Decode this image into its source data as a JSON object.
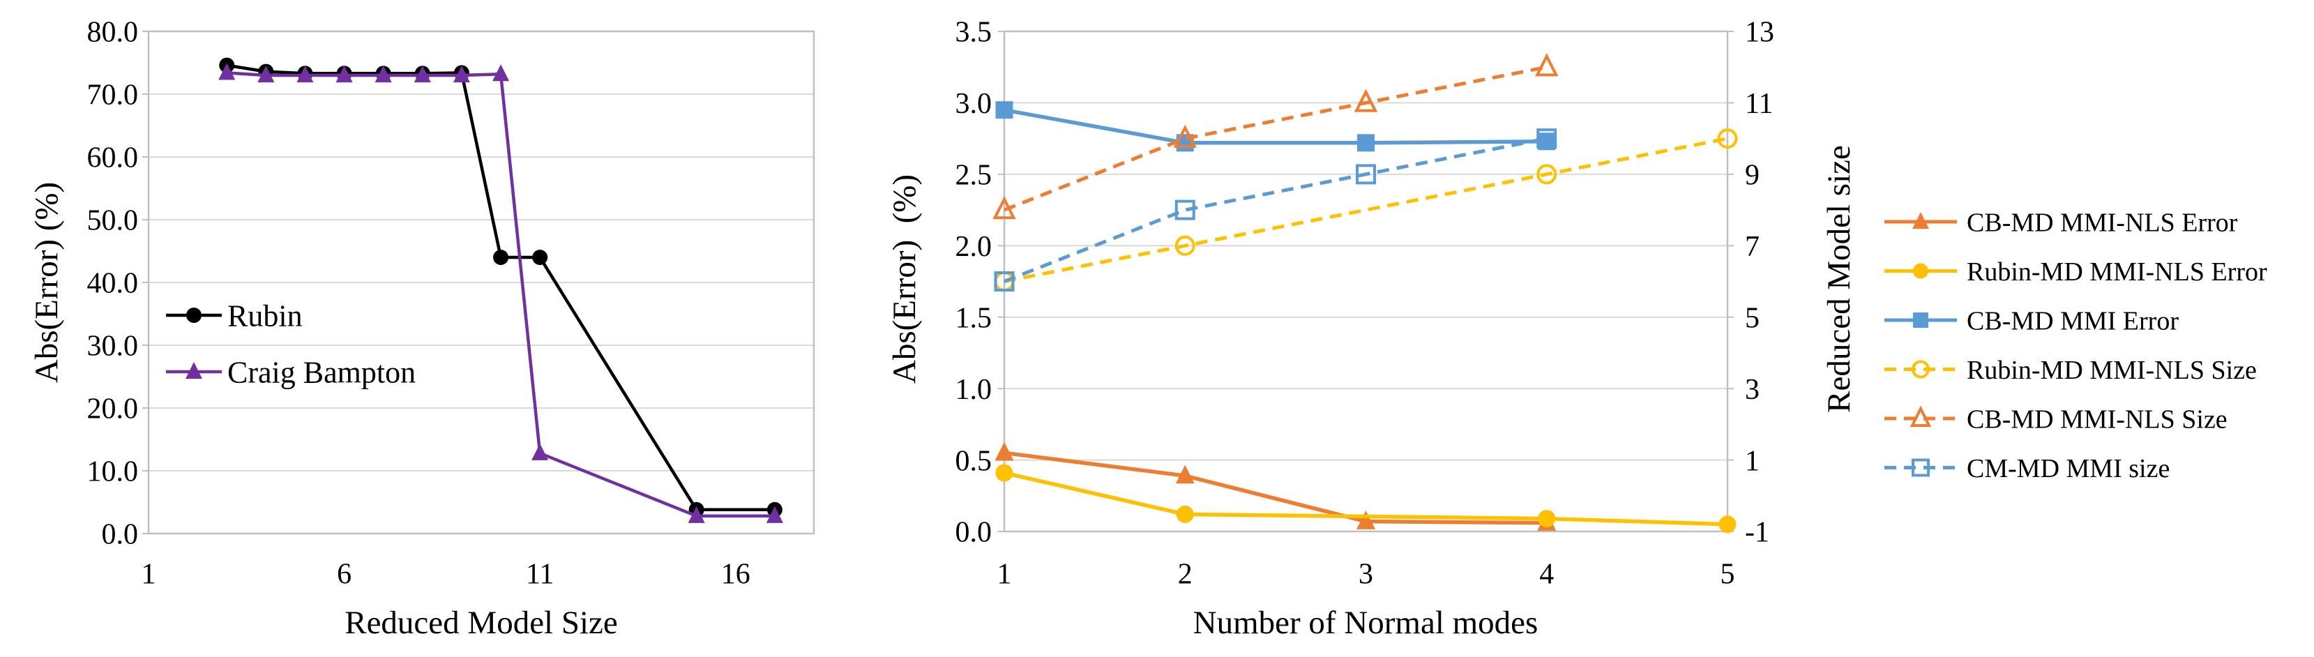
{
  "page": {
    "background": "#FFFFFF"
  },
  "colors": {
    "orange": "#ED7D31",
    "gold": "#FFC000",
    "blue": "#5B9BD5",
    "purple": "#7030A0",
    "black": "#000000",
    "gridline": "#D9D9D9",
    "axis_border": "#BFBFBF",
    "text": "#000000"
  },
  "chart_data": [
    {
      "type": "line",
      "title": "",
      "xlabel": "Reduced Model Size",
      "ylabel": "Abs(Error) (%)",
      "xlim": [
        1,
        18
      ],
      "ylim": [
        0,
        80
      ],
      "grid": "horizontal",
      "x_tick_values": [
        1,
        6,
        11,
        16
      ],
      "x_tick_labels": [
        "1",
        "6",
        "11",
        "16"
      ],
      "y_tick_labels_top_to_bottom": [
        "80.0",
        "70.0",
        "60.0",
        "50.0",
        "40.0",
        "30.0",
        "20.0",
        "10.0",
        "0.0"
      ],
      "legend_position": "inside-left",
      "series": [
        {
          "name": "Rubin",
          "color": "#000000",
          "line": "solid",
          "marker": "circle",
          "marker_fill": "filled",
          "x": [
            3,
            4,
            5,
            6,
            7,
            8,
            9,
            10,
            11,
            15,
            17
          ],
          "y": [
            74.6,
            73.6,
            73.3,
            73.3,
            73.3,
            73.3,
            73.4,
            44.0,
            44.0,
            3.8,
            3.8
          ]
        },
        {
          "name": "Craig Bampton",
          "color": "#7030A0",
          "line": "solid",
          "marker": "triangle",
          "marker_fill": "filled",
          "x": [
            3,
            4,
            5,
            6,
            7,
            8,
            9,
            10,
            11,
            15,
            17
          ],
          "y": [
            73.4,
            73.0,
            73.0,
            73.0,
            73.0,
            73.0,
            73.0,
            73.2,
            12.8,
            2.8,
            2.8
          ]
        }
      ]
    },
    {
      "type": "line",
      "title": "",
      "xlabel": "Number of Normal modes",
      "ylabel": "Abs(Error)  (%)",
      "ylabel_right": "Reduced Model size",
      "xlim": [
        1,
        5
      ],
      "ylim_left": [
        0,
        3.5
      ],
      "ylim_right": [
        -1,
        13
      ],
      "grid": "horizontal",
      "x_tick_values": [
        1,
        2,
        3,
        4,
        5
      ],
      "x_tick_labels": [
        "1",
        "2",
        "3",
        "4",
        "5"
      ],
      "y_tick_labels_left_top_to_bottom": [
        "3.5",
        "3.0",
        "2.5",
        "2.0",
        "1.5",
        "1.0",
        "0.5",
        "0.0"
      ],
      "y_tick_labels_right_top_to_bottom": [
        "13",
        "11",
        "9",
        "7",
        "5",
        "3",
        "1",
        "-1"
      ],
      "legend_position": "outside-right",
      "series": [
        {
          "name": "CB-MD MMI-NLS Error",
          "axis": "left",
          "color": "#ED7D31",
          "line": "solid",
          "marker": "triangle",
          "marker_fill": "filled",
          "x": [
            1,
            2,
            3,
            4
          ],
          "y": [
            0.55,
            0.39,
            0.07,
            0.06
          ]
        },
        {
          "name": "Rubin-MD MMI-NLS Error",
          "axis": "left",
          "color": "#FFC000",
          "line": "solid",
          "marker": "circle",
          "marker_fill": "filled",
          "x": [
            1,
            2,
            4,
            5
          ],
          "y": [
            0.41,
            0.12,
            0.09,
            0.05
          ]
        },
        {
          "name": "CB-MD MMI Error",
          "axis": "left",
          "color": "#5B9BD5",
          "line": "solid",
          "marker": "square",
          "marker_fill": "filled",
          "x": [
            1,
            2,
            3,
            4
          ],
          "y": [
            2.95,
            2.72,
            2.72,
            2.73
          ]
        },
        {
          "name": "Rubin-MD MMI-NLS Size",
          "axis": "right",
          "color": "#FFC000",
          "line": "dashed",
          "marker": "circle",
          "marker_fill": "open",
          "x": [
            1,
            2,
            4,
            5
          ],
          "y": [
            6,
            7,
            9,
            10
          ]
        },
        {
          "name": "CB-MD MMI-NLS Size",
          "axis": "right",
          "color": "#ED7D31",
          "line": "dashed",
          "marker": "triangle",
          "marker_fill": "open",
          "x": [
            1,
            2,
            3,
            4
          ],
          "y": [
            8,
            10,
            11,
            12
          ]
        },
        {
          "name": "CM-MD MMI size",
          "axis": "right",
          "color": "#5B9BD5",
          "line": "dashed",
          "marker": "square",
          "marker_fill": "open",
          "x": [
            1,
            2,
            3,
            4
          ],
          "y": [
            6,
            8,
            9,
            10
          ]
        }
      ]
    }
  ]
}
